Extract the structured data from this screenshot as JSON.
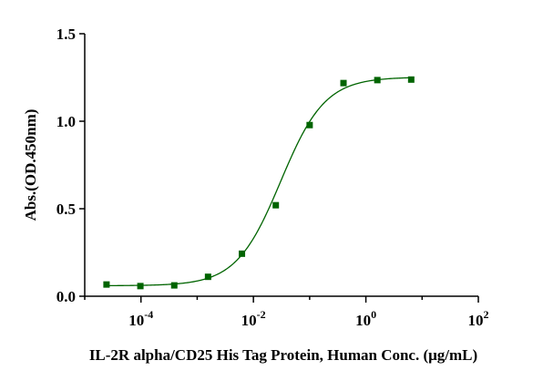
{
  "chart_data": {
    "type": "scatter",
    "title": "",
    "xlabel": "IL-2R alpha/CD25 His Tag Protein, Human Conc. (μg/mL)",
    "ylabel": "Abs.(OD.450nm)",
    "x_scale": "log",
    "xlim": [
      1e-05,
      100
    ],
    "ylim": [
      0,
      1.5
    ],
    "x_ticks": [
      {
        "value": 0.0001,
        "base": "10",
        "exp": "-4"
      },
      {
        "value": 0.01,
        "base": "10",
        "exp": "-2"
      },
      {
        "value": 1,
        "base": "10",
        "exp": "0"
      },
      {
        "value": 100,
        "base": "10",
        "exp": "2"
      }
    ],
    "y_ticks": [
      {
        "value": 0,
        "label": "0.0"
      },
      {
        "value": 0.5,
        "label": "0.5"
      },
      {
        "value": 1.0,
        "label": "1.0"
      },
      {
        "value": 1.5,
        "label": "1.5"
      }
    ],
    "grid": false,
    "series": [
      {
        "color": "#006400",
        "marker": "square",
        "x": [
          2.44e-05,
          9.77e-05,
          0.000391,
          0.00156,
          0.00625,
          0.025,
          0.1,
          0.4,
          1.6,
          6.4
        ],
        "y": [
          0.067,
          0.058,
          0.062,
          0.111,
          0.243,
          0.52,
          0.978,
          1.218,
          1.235,
          1.238
        ]
      }
    ],
    "fit_curve": {
      "model": "4PL",
      "color": "#006400",
      "bottom": 0.06,
      "top": 1.252,
      "ec50": 0.0305,
      "hill": 1.1
    }
  }
}
